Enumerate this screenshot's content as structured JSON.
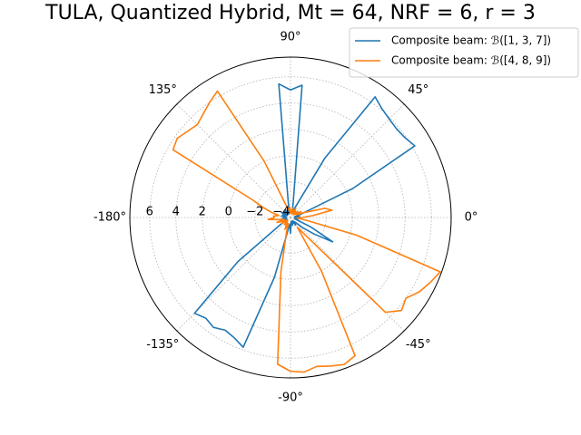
{
  "chart_data": {
    "type": "polar",
    "title": "TULA, Quantized Hybrid, Mt = 64, NRF = 6, r = 3",
    "x": [
      -180,
      -175,
      -170,
      -165,
      -160,
      -155,
      -150,
      -145,
      -140,
      -135,
      -130,
      -125,
      -120,
      -115,
      -110,
      -105,
      -100,
      -95,
      -90,
      -85,
      -80,
      -75,
      -70,
      -65,
      -60,
      -55,
      -50,
      -45,
      -40,
      -35,
      -30,
      -25,
      -20,
      -15,
      -10,
      -5,
      0,
      5,
      10,
      15,
      20,
      25,
      30,
      35,
      40,
      45,
      50,
      55,
      60,
      65,
      70,
      75,
      80,
      85,
      90,
      95,
      100,
      105,
      110,
      115,
      120,
      125,
      130,
      135,
      140,
      145,
      150,
      155,
      160,
      165,
      170,
      175,
      180
    ],
    "series": [
      {
        "name": "Composite beam: ℬ([1, 3, 7])",
        "color": "#1f77b4",
        "values": [
          -4.3,
          -4.1,
          -4.4,
          -4.0,
          -4.3,
          -4.2,
          -4.4,
          -3.8,
          0.5,
          5.6,
          5.3,
          5.5,
          5.2,
          5.4,
          5.8,
          0.0,
          -3.9,
          -4.2,
          -3.5,
          -4.2,
          -4.4,
          -4.1,
          -4.3,
          -4.2,
          -4.4,
          -4.0,
          -4.3,
          -4.2,
          -3.5,
          -2.5,
          -1.0,
          -3.0,
          -4.2,
          -4.4,
          -4.1,
          -4.3,
          -4.2,
          -4.0,
          -4.4,
          -4.1,
          -3.6,
          0.5,
          6.2,
          5.9,
          5.8,
          5.9,
          6.1,
          6.5,
          0.5,
          -3.8,
          -4.3,
          -4.1,
          -3.5,
          5.4,
          5.0,
          5.5,
          -3.9,
          -4.3,
          -4.1,
          -4.4,
          -4.2,
          -4.0,
          -4.3,
          -4.1,
          -4.4,
          -4.2,
          -3.9,
          -4.3,
          -4.1,
          -4.4,
          -4.0,
          -4.3,
          -4.3
        ]
      },
      {
        "name": "Composite beam: ℬ([4, 8, 9])",
        "color": "#ff7f0e",
        "values": [
          -3.5,
          -3.0,
          -3.8,
          -4.2,
          -3.6,
          -4.0,
          -4.3,
          -3.9,
          -4.2,
          -4.4,
          -4.0,
          -4.3,
          -4.1,
          -3.7,
          -4.2,
          -3.5,
          -0.5,
          6.5,
          7.0,
          7.1,
          6.8,
          7.0,
          7.2,
          6.9,
          0.0,
          -3.8,
          -3.0,
          5.5,
          6.3,
          6.0,
          6.6,
          7.0,
          7.4,
          0.5,
          -3.5,
          -4.2,
          -3.8,
          -3.0,
          -1.5,
          -2.0,
          -3.6,
          -4.2,
          -3.8,
          -4.3,
          -4.0,
          -4.4,
          -4.1,
          -4.3,
          -3.9,
          -4.2,
          -4.4,
          -4.0,
          -4.3,
          -4.1,
          -4.4,
          -3.9,
          -4.2,
          -4.0,
          -3.7,
          0.0,
          6.4,
          6.0,
          5.6,
          5.3,
          5.5,
          5.8,
          5.6,
          -1.5,
          -2.5,
          -3.2,
          -3.8,
          -3.4,
          -3.5
        ]
      }
    ],
    "rlim": [
      -4.7,
      7.5
    ],
    "rticks": [
      {
        "value": -4,
        "label": "−4"
      },
      {
        "value": -2,
        "label": "−2"
      },
      0,
      2,
      4,
      6
    ],
    "thetaticks": [
      {
        "value": 0,
        "label": "0°"
      },
      {
        "value": 45,
        "label": "45°"
      },
      {
        "value": 90,
        "label": "90°"
      },
      {
        "value": 135,
        "label": "135°"
      },
      {
        "value": 180,
        "label": "-180°"
      },
      {
        "value": -135,
        "label": "-135°"
      },
      {
        "value": -90,
        "label": "-90°"
      },
      {
        "value": -45,
        "label": "-45°"
      }
    ],
    "grid": true,
    "legend": "upper right"
  }
}
